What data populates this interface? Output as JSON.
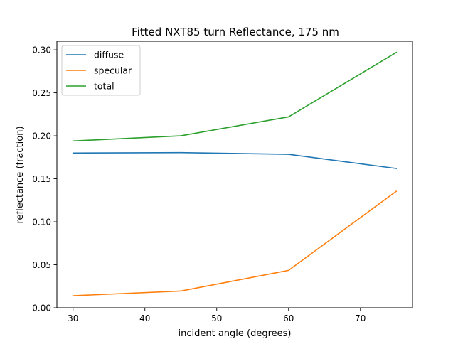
{
  "chart_data": {
    "type": "line",
    "title": "Fitted NXT85 turn Reflectance, 175 nm",
    "xlabel": "incident angle (degrees)",
    "ylabel": "reflectance (fraction)",
    "x": [
      30,
      45,
      60,
      75
    ],
    "xlim": [
      27.75,
      77.25
    ],
    "ylim": [
      0.0,
      0.31
    ],
    "xticks": [
      30,
      40,
      50,
      60,
      70
    ],
    "xtick_labels": [
      "30",
      "40",
      "50",
      "60",
      "70"
    ],
    "yticks": [
      0.0,
      0.05,
      0.1,
      0.15,
      0.2,
      0.25,
      0.3
    ],
    "ytick_labels": [
      "0.00",
      "0.05",
      "0.10",
      "0.15",
      "0.20",
      "0.25",
      "0.30"
    ],
    "grid": false,
    "legend_position": "upper-left",
    "series": [
      {
        "name": "diffuse",
        "color": "#1f77b4",
        "values": [
          0.18,
          0.1805,
          0.1785,
          0.162
        ]
      },
      {
        "name": "specular",
        "color": "#ff7f0e",
        "values": [
          0.014,
          0.0195,
          0.0435,
          0.1355
        ]
      },
      {
        "name": "total",
        "color": "#2ca02c",
        "values": [
          0.194,
          0.2,
          0.222,
          0.297
        ]
      }
    ]
  }
}
